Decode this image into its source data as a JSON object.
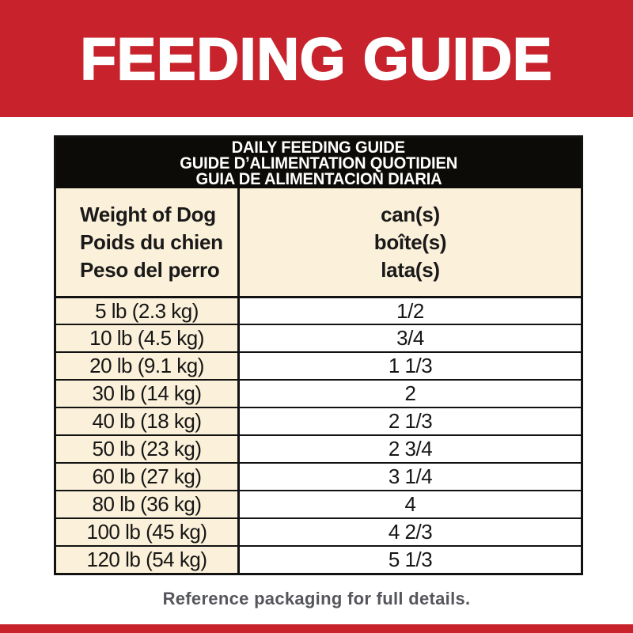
{
  "colors": {
    "brand_red": "#C8232C",
    "cream": "#FBF0D9",
    "table_border_black": "#121212",
    "header_band_black": "#0D0B07",
    "footer_gray": "#55565B",
    "white": "#FFFFFF"
  },
  "banner": {
    "title": "FEEDING GUIDE"
  },
  "table": {
    "header_lines": [
      "DAILY FEEDING GUIDE",
      "GUIDE D’ALIMENTATION QUOTIDIEN",
      "GUIA DE ALIMENTACION DIARIA"
    ],
    "col_headers": {
      "weight": [
        "Weight of Dog",
        "Poids du chien",
        "Peso del perro"
      ],
      "amount": [
        "can(s)",
        "boîte(s)",
        "lata(s)"
      ]
    },
    "rows": [
      {
        "weight": "5 lb (2.3 kg)",
        "cans": "1/2"
      },
      {
        "weight": "10 lb (4.5 kg)",
        "cans": "3/4"
      },
      {
        "weight": "20 lb (9.1 kg)",
        "cans": "1 1/3"
      },
      {
        "weight": "30 lb (14 kg)",
        "cans": "2"
      },
      {
        "weight": "40 lb (18 kg)",
        "cans": "2 1/3"
      },
      {
        "weight": "50 lb (23 kg)",
        "cans": "2 3/4"
      },
      {
        "weight": "60 lb (27 kg)",
        "cans": "3 1/4"
      },
      {
        "weight": "80 lb (36 kg)",
        "cans": "4"
      },
      {
        "weight": "100 lb (45 kg)",
        "cans": "4 2/3"
      },
      {
        "weight": "120 lb (54 kg)",
        "cans": "5 1/3"
      }
    ]
  },
  "footer": {
    "note": "Reference packaging for full details."
  }
}
